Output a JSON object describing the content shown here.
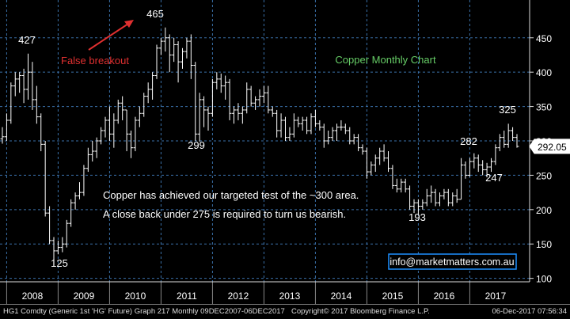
{
  "chart_data": {
    "type": "ohlc",
    "title": "Copper Monthly Chart",
    "ylim": [
      95,
      505
    ],
    "y_ticks": [
      100,
      150,
      200,
      250,
      300,
      350,
      400,
      450
    ],
    "x_years": [
      "2008",
      "2009",
      "2010",
      "2011",
      "2012",
      "2013",
      "2014",
      "2015",
      "2016",
      "2017"
    ],
    "x_start": "2007-12",
    "x_end": "2017-12",
    "last_price": "292.05",
    "colors": {
      "bars": "#ffffff",
      "grid": "#3a6fa8",
      "title": "#66cc66",
      "false_breakout": "#e03030",
      "watermark_border": "#1e90ff"
    },
    "annotations": {
      "peak_2008": "427",
      "peak_2011": "465",
      "low_2008": "125",
      "low_2011": "299",
      "low_2016": "193",
      "high_2017a": "282",
      "low_2017": "247",
      "high_2017b": "325",
      "false_breakout": "False breakout",
      "comment_1": "Copper has achieved our targeted test of the ~300 area.",
      "comment_2": "A close back under 275 is required to turn us bearish."
    },
    "watermark": "info@marketmatters.com.au",
    "series": [
      {
        "values": [
          {
            "x": "2007-12",
            "o": 303,
            "h": 320,
            "l": 296,
            "c": 306
          },
          {
            "x": "2008-01",
            "o": 306,
            "h": 340,
            "l": 300,
            "c": 330
          },
          {
            "x": "2008-02",
            "o": 330,
            "h": 385,
            "l": 325,
            "c": 380
          },
          {
            "x": "2008-03",
            "o": 380,
            "h": 400,
            "l": 365,
            "c": 390
          },
          {
            "x": "2008-04",
            "o": 390,
            "h": 400,
            "l": 370,
            "c": 395
          },
          {
            "x": "2008-05",
            "o": 395,
            "h": 405,
            "l": 355,
            "c": 375
          },
          {
            "x": "2008-06",
            "o": 375,
            "h": 427,
            "l": 360,
            "c": 400
          },
          {
            "x": "2008-07",
            "o": 400,
            "h": 415,
            "l": 345,
            "c": 360
          },
          {
            "x": "2008-08",
            "o": 360,
            "h": 380,
            "l": 325,
            "c": 335
          },
          {
            "x": "2008-09",
            "o": 335,
            "h": 340,
            "l": 285,
            "c": 295
          },
          {
            "x": "2008-10",
            "o": 295,
            "h": 300,
            "l": 190,
            "c": 195
          },
          {
            "x": "2008-11",
            "o": 195,
            "h": 205,
            "l": 150,
            "c": 155
          },
          {
            "x": "2008-12",
            "o": 155,
            "h": 160,
            "l": 125,
            "c": 140
          },
          {
            "x": "2009-01",
            "o": 140,
            "h": 155,
            "l": 135,
            "c": 145
          },
          {
            "x": "2009-02",
            "o": 145,
            "h": 160,
            "l": 138,
            "c": 150
          },
          {
            "x": "2009-03",
            "o": 150,
            "h": 185,
            "l": 145,
            "c": 180
          },
          {
            "x": "2009-04",
            "o": 180,
            "h": 215,
            "l": 175,
            "c": 210
          },
          {
            "x": "2009-05",
            "o": 210,
            "h": 225,
            "l": 200,
            "c": 220
          },
          {
            "x": "2009-06",
            "o": 220,
            "h": 240,
            "l": 215,
            "c": 225
          },
          {
            "x": "2009-07",
            "o": 225,
            "h": 265,
            "l": 220,
            "c": 260
          },
          {
            "x": "2009-08",
            "o": 260,
            "h": 290,
            "l": 255,
            "c": 280
          },
          {
            "x": "2009-09",
            "o": 280,
            "h": 300,
            "l": 270,
            "c": 285
          },
          {
            "x": "2009-10",
            "o": 285,
            "h": 305,
            "l": 275,
            "c": 300
          },
          {
            "x": "2009-11",
            "o": 300,
            "h": 320,
            "l": 295,
            "c": 315
          },
          {
            "x": "2009-12",
            "o": 315,
            "h": 335,
            "l": 305,
            "c": 330
          },
          {
            "x": "2010-01",
            "o": 330,
            "h": 350,
            "l": 300,
            "c": 310
          },
          {
            "x": "2010-02",
            "o": 310,
            "h": 340,
            "l": 290,
            "c": 330
          },
          {
            "x": "2010-03",
            "o": 330,
            "h": 360,
            "l": 325,
            "c": 355
          },
          {
            "x": "2010-04",
            "o": 355,
            "h": 365,
            "l": 330,
            "c": 345
          },
          {
            "x": "2010-05",
            "o": 345,
            "h": 345,
            "l": 285,
            "c": 310
          },
          {
            "x": "2010-06",
            "o": 310,
            "h": 315,
            "l": 275,
            "c": 290
          },
          {
            "x": "2010-07",
            "o": 290,
            "h": 335,
            "l": 285,
            "c": 330
          },
          {
            "x": "2010-08",
            "o": 330,
            "h": 350,
            "l": 320,
            "c": 340
          },
          {
            "x": "2010-09",
            "o": 340,
            "h": 370,
            "l": 335,
            "c": 365
          },
          {
            "x": "2010-10",
            "o": 365,
            "h": 385,
            "l": 355,
            "c": 375
          },
          {
            "x": "2010-11",
            "o": 375,
            "h": 400,
            "l": 360,
            "c": 395
          },
          {
            "x": "2010-12",
            "o": 395,
            "h": 440,
            "l": 390,
            "c": 435
          },
          {
            "x": "2011-01",
            "o": 435,
            "h": 450,
            "l": 425,
            "c": 445
          },
          {
            "x": "2011-02",
            "o": 445,
            "h": 465,
            "l": 430,
            "c": 450
          },
          {
            "x": "2011-03",
            "o": 450,
            "h": 455,
            "l": 400,
            "c": 425
          },
          {
            "x": "2011-04",
            "o": 425,
            "h": 450,
            "l": 415,
            "c": 440
          },
          {
            "x": "2011-05",
            "o": 440,
            "h": 445,
            "l": 385,
            "c": 415
          },
          {
            "x": "2011-06",
            "o": 415,
            "h": 435,
            "l": 405,
            "c": 430
          },
          {
            "x": "2011-07",
            "o": 430,
            "h": 450,
            "l": 420,
            "c": 445
          },
          {
            "x": "2011-08",
            "o": 445,
            "h": 455,
            "l": 390,
            "c": 410
          },
          {
            "x": "2011-09",
            "o": 410,
            "h": 415,
            "l": 300,
            "c": 310
          },
          {
            "x": "2011-10",
            "o": 310,
            "h": 370,
            "l": 299,
            "c": 360
          },
          {
            "x": "2011-11",
            "o": 360,
            "h": 365,
            "l": 320,
            "c": 345
          },
          {
            "x": "2011-12",
            "o": 345,
            "h": 350,
            "l": 315,
            "c": 340
          },
          {
            "x": "2012-01",
            "o": 340,
            "h": 390,
            "l": 335,
            "c": 385
          },
          {
            "x": "2012-02",
            "o": 385,
            "h": 400,
            "l": 375,
            "c": 390
          },
          {
            "x": "2012-03",
            "o": 390,
            "h": 398,
            "l": 370,
            "c": 380
          },
          {
            "x": "2012-04",
            "o": 380,
            "h": 395,
            "l": 360,
            "c": 385
          },
          {
            "x": "2012-05",
            "o": 385,
            "h": 390,
            "l": 330,
            "c": 340
          },
          {
            "x": "2012-06",
            "o": 340,
            "h": 350,
            "l": 325,
            "c": 345
          },
          {
            "x": "2012-07",
            "o": 345,
            "h": 355,
            "l": 330,
            "c": 340
          },
          {
            "x": "2012-08",
            "o": 340,
            "h": 350,
            "l": 325,
            "c": 345
          },
          {
            "x": "2012-09",
            "o": 345,
            "h": 385,
            "l": 340,
            "c": 375
          },
          {
            "x": "2012-10",
            "o": 375,
            "h": 380,
            "l": 350,
            "c": 355
          },
          {
            "x": "2012-11",
            "o": 355,
            "h": 365,
            "l": 345,
            "c": 360
          },
          {
            "x": "2012-12",
            "o": 360,
            "h": 375,
            "l": 350,
            "c": 365
          },
          {
            "x": "2013-01",
            "o": 365,
            "h": 380,
            "l": 355,
            "c": 370
          },
          {
            "x": "2013-02",
            "o": 370,
            "h": 380,
            "l": 340,
            "c": 345
          },
          {
            "x": "2013-03",
            "o": 345,
            "h": 350,
            "l": 335,
            "c": 340
          },
          {
            "x": "2013-04",
            "o": 340,
            "h": 345,
            "l": 305,
            "c": 315
          },
          {
            "x": "2013-05",
            "o": 315,
            "h": 340,
            "l": 305,
            "c": 330
          },
          {
            "x": "2013-06",
            "o": 330,
            "h": 335,
            "l": 300,
            "c": 305
          },
          {
            "x": "2013-07",
            "o": 305,
            "h": 320,
            "l": 300,
            "c": 310
          },
          {
            "x": "2013-08",
            "o": 310,
            "h": 340,
            "l": 305,
            "c": 330
          },
          {
            "x": "2013-09",
            "o": 330,
            "h": 335,
            "l": 320,
            "c": 325
          },
          {
            "x": "2013-10",
            "o": 325,
            "h": 335,
            "l": 315,
            "c": 330
          },
          {
            "x": "2013-11",
            "o": 330,
            "h": 335,
            "l": 310,
            "c": 315
          },
          {
            "x": "2013-12",
            "o": 315,
            "h": 340,
            "l": 310,
            "c": 335
          },
          {
            "x": "2014-01",
            "o": 335,
            "h": 345,
            "l": 320,
            "c": 325
          },
          {
            "x": "2014-02",
            "o": 325,
            "h": 330,
            "l": 315,
            "c": 320
          },
          {
            "x": "2014-03",
            "o": 320,
            "h": 325,
            "l": 290,
            "c": 300
          },
          {
            "x": "2014-04",
            "o": 300,
            "h": 315,
            "l": 295,
            "c": 305
          },
          {
            "x": "2014-05",
            "o": 305,
            "h": 320,
            "l": 300,
            "c": 315
          },
          {
            "x": "2014-06",
            "o": 315,
            "h": 325,
            "l": 300,
            "c": 320
          },
          {
            "x": "2014-07",
            "o": 320,
            "h": 330,
            "l": 315,
            "c": 320
          },
          {
            "x": "2014-08",
            "o": 320,
            "h": 325,
            "l": 310,
            "c": 315
          },
          {
            "x": "2014-09",
            "o": 315,
            "h": 320,
            "l": 295,
            "c": 300
          },
          {
            "x": "2014-10",
            "o": 300,
            "h": 310,
            "l": 295,
            "c": 305
          },
          {
            "x": "2014-11",
            "o": 305,
            "h": 310,
            "l": 285,
            "c": 290
          },
          {
            "x": "2014-12",
            "o": 290,
            "h": 295,
            "l": 280,
            "c": 285
          },
          {
            "x": "2015-01",
            "o": 285,
            "h": 290,
            "l": 245,
            "c": 255
          },
          {
            "x": "2015-02",
            "o": 255,
            "h": 270,
            "l": 250,
            "c": 265
          },
          {
            "x": "2015-03",
            "o": 265,
            "h": 280,
            "l": 255,
            "c": 275
          },
          {
            "x": "2015-04",
            "o": 275,
            "h": 290,
            "l": 265,
            "c": 285
          },
          {
            "x": "2015-05",
            "o": 285,
            "h": 295,
            "l": 270,
            "c": 275
          },
          {
            "x": "2015-06",
            "o": 275,
            "h": 285,
            "l": 255,
            "c": 260
          },
          {
            "x": "2015-07",
            "o": 260,
            "h": 265,
            "l": 230,
            "c": 235
          },
          {
            "x": "2015-08",
            "o": 235,
            "h": 245,
            "l": 225,
            "c": 230
          },
          {
            "x": "2015-09",
            "o": 230,
            "h": 245,
            "l": 225,
            "c": 240
          },
          {
            "x": "2015-10",
            "o": 240,
            "h": 245,
            "l": 225,
            "c": 230
          },
          {
            "x": "2015-11",
            "o": 230,
            "h": 235,
            "l": 200,
            "c": 205
          },
          {
            "x": "2015-12",
            "o": 205,
            "h": 215,
            "l": 195,
            "c": 210
          },
          {
            "x": "2016-01",
            "o": 210,
            "h": 215,
            "l": 193,
            "c": 205
          },
          {
            "x": "2016-02",
            "o": 205,
            "h": 215,
            "l": 200,
            "c": 210
          },
          {
            "x": "2016-03",
            "o": 210,
            "h": 230,
            "l": 205,
            "c": 220
          },
          {
            "x": "2016-04",
            "o": 220,
            "h": 235,
            "l": 210,
            "c": 225
          },
          {
            "x": "2016-05",
            "o": 225,
            "h": 230,
            "l": 205,
            "c": 210
          },
          {
            "x": "2016-06",
            "o": 210,
            "h": 225,
            "l": 205,
            "c": 220
          },
          {
            "x": "2016-07",
            "o": 220,
            "h": 230,
            "l": 215,
            "c": 225
          },
          {
            "x": "2016-08",
            "o": 225,
            "h": 230,
            "l": 205,
            "c": 210
          },
          {
            "x": "2016-09",
            "o": 210,
            "h": 225,
            "l": 205,
            "c": 220
          },
          {
            "x": "2016-10",
            "o": 220,
            "h": 230,
            "l": 210,
            "c": 215
          },
          {
            "x": "2016-11",
            "o": 215,
            "h": 275,
            "l": 215,
            "c": 265
          },
          {
            "x": "2016-12",
            "o": 265,
            "h": 270,
            "l": 245,
            "c": 250
          },
          {
            "x": "2017-01",
            "o": 250,
            "h": 275,
            "l": 248,
            "c": 270
          },
          {
            "x": "2017-02",
            "o": 270,
            "h": 282,
            "l": 260,
            "c": 275
          },
          {
            "x": "2017-03",
            "o": 275,
            "h": 280,
            "l": 255,
            "c": 265
          },
          {
            "x": "2017-04",
            "o": 265,
            "h": 272,
            "l": 250,
            "c": 258
          },
          {
            "x": "2017-05",
            "o": 258,
            "h": 268,
            "l": 247,
            "c": 262
          },
          {
            "x": "2017-06",
            "o": 262,
            "h": 275,
            "l": 255,
            "c": 270
          },
          {
            "x": "2017-07",
            "o": 270,
            "h": 295,
            "l": 265,
            "c": 290
          },
          {
            "x": "2017-08",
            "o": 290,
            "h": 310,
            "l": 285,
            "c": 305
          },
          {
            "x": "2017-09",
            "o": 305,
            "h": 315,
            "l": 290,
            "c": 295
          },
          {
            "x": "2017-10",
            "o": 295,
            "h": 325,
            "l": 290,
            "c": 315
          },
          {
            "x": "2017-11",
            "o": 315,
            "h": 320,
            "l": 300,
            "c": 305
          },
          {
            "x": "2017-12",
            "o": 305,
            "h": 310,
            "l": 290,
            "c": 292
          }
        ]
      }
    ]
  },
  "footer": {
    "left": "HG1 Comdty (Generic 1st 'HG' Future) Graph 217  Monthly 09DEC2007-06DEC2017",
    "center": "Copyright© 2017 Bloomberg Finance L.P.",
    "right": "06-Dec-2017 07:56:34"
  }
}
